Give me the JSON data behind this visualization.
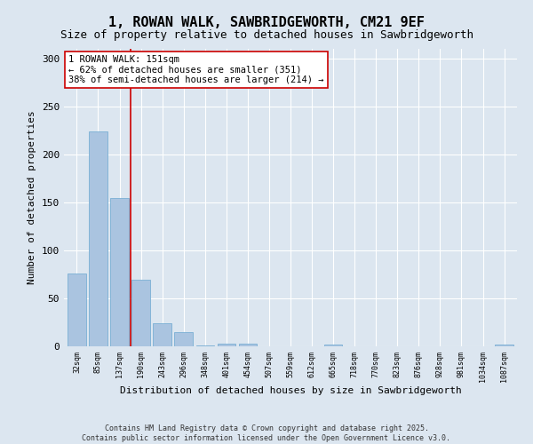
{
  "title": "1, ROWAN WALK, SAWBRIDGEWORTH, CM21 9EF",
  "subtitle": "Size of property relative to detached houses in Sawbridgeworth",
  "xlabel": "Distribution of detached houses by size in Sawbridgeworth",
  "ylabel": "Number of detached properties",
  "categories": [
    "32sqm",
    "85sqm",
    "137sqm",
    "190sqm",
    "243sqm",
    "296sqm",
    "348sqm",
    "401sqm",
    "454sqm",
    "507sqm",
    "559sqm",
    "612sqm",
    "665sqm",
    "718sqm",
    "770sqm",
    "823sqm",
    "876sqm",
    "928sqm",
    "981sqm",
    "1034sqm",
    "1087sqm"
  ],
  "values": [
    76,
    224,
    155,
    69,
    24,
    15,
    1,
    3,
    3,
    0,
    0,
    0,
    2,
    0,
    0,
    0,
    0,
    0,
    0,
    0,
    2
  ],
  "bar_color": "#aac4e0",
  "bar_edge_color": "#7aafd4",
  "vline_x": 2.5,
  "vline_color": "#cc0000",
  "annotation_text": "1 ROWAN WALK: 151sqm\n← 62% of detached houses are smaller (351)\n38% of semi-detached houses are larger (214) →",
  "annotation_box_color": "#ffffff",
  "annotation_box_edge": "#cc0000",
  "ylim": [
    0,
    310
  ],
  "yticks": [
    0,
    50,
    100,
    150,
    200,
    250,
    300
  ],
  "bg_color": "#dce6f0",
  "grid_color": "#ffffff",
  "footer": "Contains HM Land Registry data © Crown copyright and database right 2025.\nContains public sector information licensed under the Open Government Licence v3.0.",
  "title_fontsize": 11,
  "subtitle_fontsize": 9,
  "annotation_fontsize": 7.5
}
